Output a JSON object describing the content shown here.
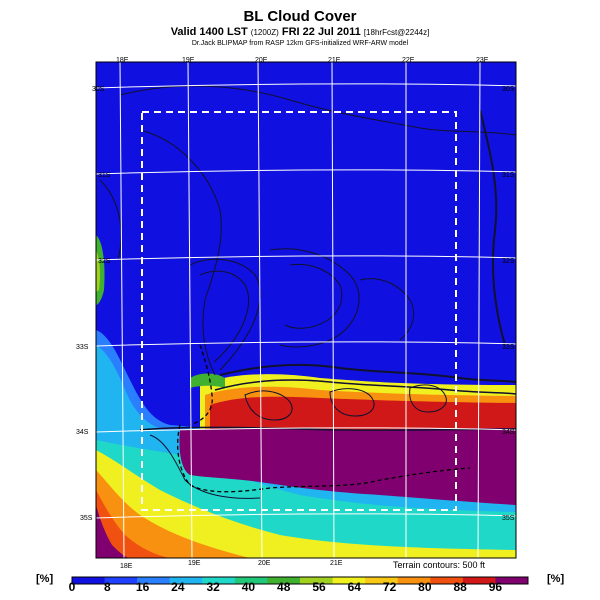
{
  "header": {
    "title": "BL Cloud Cover",
    "subtitle_main": "Valid 1400 LST",
    "subtitle_code": "(1200Z)",
    "subtitle_date": "FRI 22 Jul 2011",
    "subtitle_forecast": "[18hrFcst@2244z]",
    "credit": "Dr.Jack BLIPMAP from RASP 12km GFS-initialized WRF-ARW model"
  },
  "map": {
    "lon_labels_top": [
      "18E",
      "19E",
      "20E",
      "21E",
      "22E",
      "23E"
    ],
    "lon_labels_bottom": [
      "18E",
      "19E",
      "20E",
      "21E"
    ],
    "lat_labels_right": [
      "30S",
      "31S",
      "32S",
      "33S",
      "34S",
      "35S"
    ],
    "lat_labels_left": [
      "30S",
      "31S",
      "32S",
      "33S",
      "34S",
      "35S"
    ],
    "terrain_note": "Terrain contours: 500 ft"
  },
  "colorbar": {
    "unit": "[%]",
    "ticks": [
      "0",
      "8",
      "16",
      "24",
      "32",
      "40",
      "48",
      "56",
      "64",
      "72",
      "80",
      "88",
      "96"
    ],
    "colors": [
      "#1010e0",
      "#2040ff",
      "#2a7fff",
      "#20b4f0",
      "#20d8c8",
      "#20c878",
      "#40b030",
      "#a0d020",
      "#f0f020",
      "#f8c818",
      "#f89010",
      "#f05010",
      "#d01818",
      "#800070"
    ]
  }
}
